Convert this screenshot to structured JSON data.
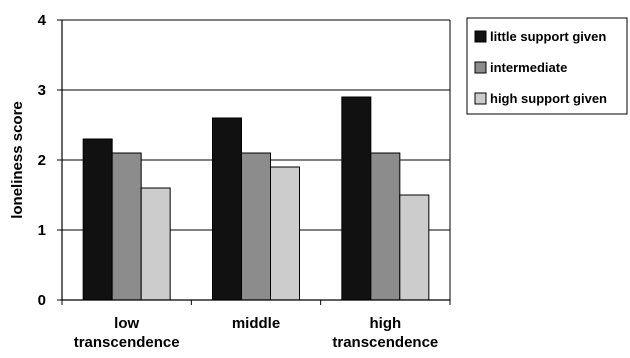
{
  "chart_data": {
    "type": "bar",
    "title": "",
    "ylabel": "loneliness score",
    "xlabel": "",
    "ylim": [
      0,
      4
    ],
    "yticks": [
      0,
      1,
      2,
      3,
      4
    ],
    "grid": "horizontal",
    "legend_position": "top-right",
    "categories": [
      [
        "low",
        "transcendence"
      ],
      [
        "middle"
      ],
      [
        "high",
        "transcendence"
      ]
    ],
    "series": [
      {
        "name": "little support given",
        "color": "#111111",
        "values": [
          2.3,
          2.6,
          2.9
        ]
      },
      {
        "name": "intermediate",
        "color": "#8c8c8c",
        "values": [
          2.1,
          2.1,
          2.1
        ]
      },
      {
        "name": "high support given",
        "color": "#cccccc",
        "values": [
          1.6,
          1.9,
          1.5
        ]
      }
    ]
  }
}
